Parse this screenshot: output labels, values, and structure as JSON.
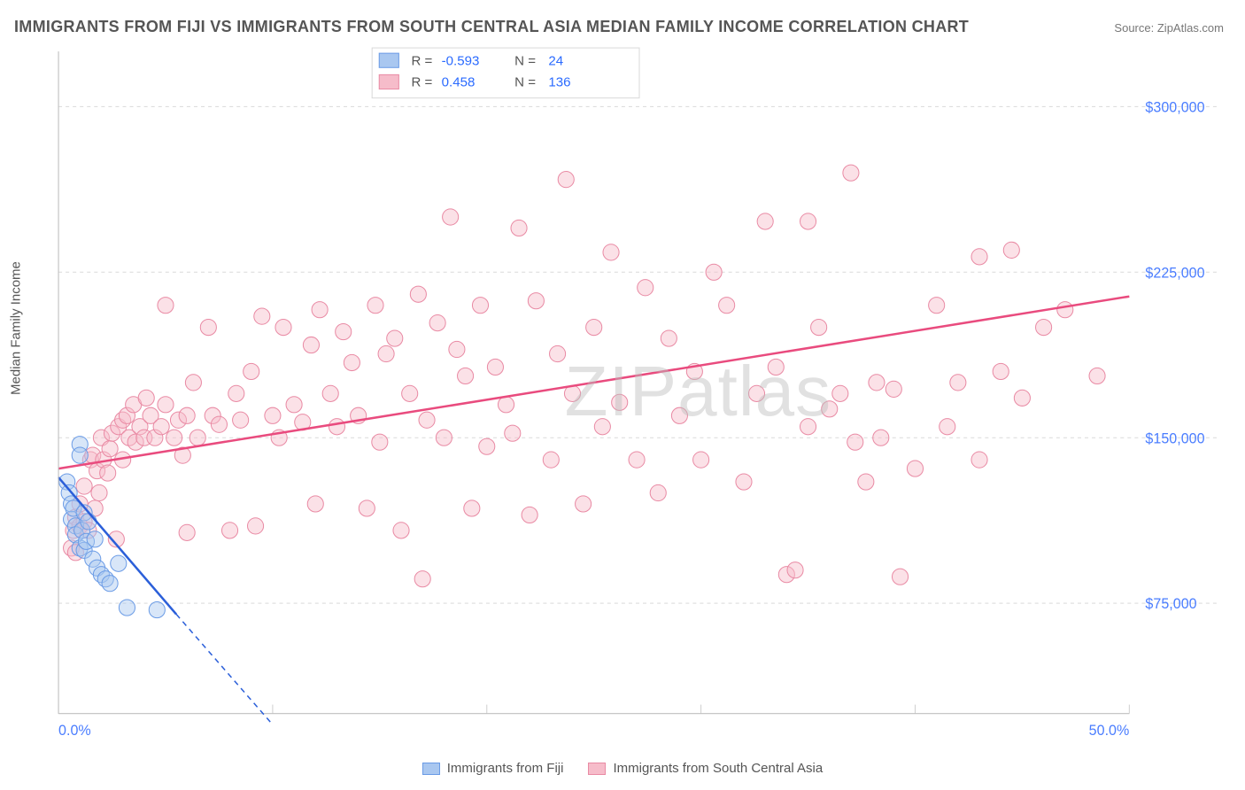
{
  "title": "IMMIGRANTS FROM FIJI VS IMMIGRANTS FROM SOUTH CENTRAL ASIA MEDIAN FAMILY INCOME CORRELATION CHART",
  "source_label": "Source:",
  "source_site": "ZipAtlas.com",
  "watermark": "ZIPatlas",
  "y_axis_title": "Median Family Income",
  "chart": {
    "type": "scatter-with-regression",
    "background_color": "#ffffff",
    "grid_color": "#d9d9d9",
    "axis_color": "#cfcfcf",
    "xlim": [
      0,
      50
    ],
    "ylim": [
      25000,
      325000
    ],
    "x_ticks": [
      0,
      10,
      20,
      30,
      40,
      50
    ],
    "x_tick_labels": [
      "0.0%",
      "",
      "",
      "",
      "",
      "50.0%"
    ],
    "y_ticks": [
      75000,
      150000,
      225000,
      300000
    ],
    "y_tick_labels": [
      "$75,000",
      "$150,000",
      "$225,000",
      "$300,000"
    ],
    "tick_label_color": "#4a7dff",
    "tick_label_fontsize": 16,
    "marker_radius": 9,
    "marker_opacity": 0.45,
    "series": [
      {
        "id": "fiji",
        "label": "Immigrants from Fiji",
        "color_fill": "#a9c7f0",
        "color_stroke": "#6a9be6",
        "line_color": "#2b5fd9",
        "line_width": 2.5,
        "R": -0.593,
        "N": 24,
        "regression": {
          "x1": 0,
          "y1": 132000,
          "x2": 5.5,
          "y2": 70000,
          "dash_after_x": 5.5,
          "x3": 10,
          "y3": 20000
        },
        "points": [
          [
            0.4,
            130000
          ],
          [
            0.5,
            125000
          ],
          [
            0.6,
            120000
          ],
          [
            0.6,
            113000
          ],
          [
            0.7,
            118000
          ],
          [
            0.8,
            110000
          ],
          [
            0.8,
            106000
          ],
          [
            1.0,
            147000
          ],
          [
            1.0,
            142000
          ],
          [
            1.0,
            100000
          ],
          [
            1.1,
            108000
          ],
          [
            1.2,
            116000
          ],
          [
            1.2,
            99000
          ],
          [
            1.3,
            103000
          ],
          [
            1.4,
            112000
          ],
          [
            1.6,
            95000
          ],
          [
            1.7,
            104000
          ],
          [
            1.8,
            91000
          ],
          [
            2.0,
            88000
          ],
          [
            2.2,
            86000
          ],
          [
            2.4,
            84000
          ],
          [
            2.8,
            93000
          ],
          [
            3.2,
            73000
          ],
          [
            4.6,
            72000
          ]
        ]
      },
      {
        "id": "sca",
        "label": "Immigrants from South Central Asia",
        "color_fill": "#f6bcca",
        "color_stroke": "#e98aa4",
        "line_color": "#e94b7e",
        "line_width": 2.5,
        "R": 0.458,
        "N": 136,
        "regression": {
          "x1": 0,
          "y1": 136000,
          "x2": 50,
          "y2": 214000
        },
        "points": [
          [
            0.6,
            100000
          ],
          [
            0.7,
            108000
          ],
          [
            0.8,
            98000
          ],
          [
            0.8,
            114000
          ],
          [
            1.0,
            110000
          ],
          [
            1.0,
            120000
          ],
          [
            1.2,
            112000
          ],
          [
            1.2,
            128000
          ],
          [
            1.4,
            108000
          ],
          [
            1.5,
            140000
          ],
          [
            1.6,
            142000
          ],
          [
            1.7,
            118000
          ],
          [
            1.8,
            135000
          ],
          [
            1.9,
            125000
          ],
          [
            2.0,
            150000
          ],
          [
            2.1,
            140000
          ],
          [
            2.3,
            134000
          ],
          [
            2.4,
            145000
          ],
          [
            2.5,
            152000
          ],
          [
            2.7,
            104000
          ],
          [
            2.8,
            155000
          ],
          [
            3.0,
            158000
          ],
          [
            3.0,
            140000
          ],
          [
            3.2,
            160000
          ],
          [
            3.3,
            150000
          ],
          [
            3.5,
            165000
          ],
          [
            3.6,
            148000
          ],
          [
            3.8,
            155000
          ],
          [
            4.0,
            150000
          ],
          [
            4.1,
            168000
          ],
          [
            4.3,
            160000
          ],
          [
            4.5,
            150000
          ],
          [
            4.8,
            155000
          ],
          [
            5.0,
            165000
          ],
          [
            5.0,
            210000
          ],
          [
            5.4,
            150000
          ],
          [
            5.6,
            158000
          ],
          [
            5.8,
            142000
          ],
          [
            6.0,
            160000
          ],
          [
            6.0,
            107000
          ],
          [
            6.3,
            175000
          ],
          [
            6.5,
            150000
          ],
          [
            7.0,
            200000
          ],
          [
            7.2,
            160000
          ],
          [
            7.5,
            156000
          ],
          [
            8.0,
            108000
          ],
          [
            8.3,
            170000
          ],
          [
            8.5,
            158000
          ],
          [
            9.0,
            180000
          ],
          [
            9.2,
            110000
          ],
          [
            9.5,
            205000
          ],
          [
            10.0,
            160000
          ],
          [
            10.3,
            150000
          ],
          [
            10.5,
            200000
          ],
          [
            11.0,
            165000
          ],
          [
            11.4,
            157000
          ],
          [
            11.8,
            192000
          ],
          [
            12.0,
            120000
          ],
          [
            12.2,
            208000
          ],
          [
            12.7,
            170000
          ],
          [
            13.0,
            155000
          ],
          [
            13.3,
            198000
          ],
          [
            13.7,
            184000
          ],
          [
            14.0,
            160000
          ],
          [
            14.4,
            118000
          ],
          [
            14.8,
            210000
          ],
          [
            15.0,
            148000
          ],
          [
            15.3,
            188000
          ],
          [
            15.7,
            195000
          ],
          [
            16.0,
            108000
          ],
          [
            16.4,
            170000
          ],
          [
            16.8,
            215000
          ],
          [
            17.0,
            86000
          ],
          [
            17.2,
            158000
          ],
          [
            17.7,
            202000
          ],
          [
            18.0,
            150000
          ],
          [
            18.3,
            250000
          ],
          [
            18.6,
            190000
          ],
          [
            19.0,
            178000
          ],
          [
            19.3,
            118000
          ],
          [
            19.7,
            210000
          ],
          [
            20.0,
            146000
          ],
          [
            20.4,
            182000
          ],
          [
            20.9,
            165000
          ],
          [
            21.2,
            152000
          ],
          [
            21.5,
            245000
          ],
          [
            22.0,
            115000
          ],
          [
            22.3,
            212000
          ],
          [
            23.0,
            140000
          ],
          [
            23.3,
            188000
          ],
          [
            23.7,
            267000
          ],
          [
            24.0,
            170000
          ],
          [
            24.5,
            120000
          ],
          [
            25.0,
            200000
          ],
          [
            25.4,
            155000
          ],
          [
            25.8,
            234000
          ],
          [
            26.2,
            166000
          ],
          [
            27.0,
            140000
          ],
          [
            27.4,
            218000
          ],
          [
            28.0,
            125000
          ],
          [
            28.5,
            195000
          ],
          [
            29.0,
            160000
          ],
          [
            29.7,
            180000
          ],
          [
            30.0,
            140000
          ],
          [
            30.6,
            225000
          ],
          [
            31.2,
            210000
          ],
          [
            32.0,
            130000
          ],
          [
            32.6,
            170000
          ],
          [
            33.0,
            248000
          ],
          [
            33.5,
            182000
          ],
          [
            34.0,
            88000
          ],
          [
            34.4,
            90000
          ],
          [
            35.0,
            155000
          ],
          [
            35.0,
            248000
          ],
          [
            35.5,
            200000
          ],
          [
            36.0,
            163000
          ],
          [
            36.5,
            170000
          ],
          [
            37.0,
            270000
          ],
          [
            37.2,
            148000
          ],
          [
            37.7,
            130000
          ],
          [
            38.2,
            175000
          ],
          [
            38.4,
            150000
          ],
          [
            39.0,
            172000
          ],
          [
            39.3,
            87000
          ],
          [
            40.0,
            136000
          ],
          [
            41.0,
            210000
          ],
          [
            41.5,
            155000
          ],
          [
            42.0,
            175000
          ],
          [
            43.0,
            232000
          ],
          [
            43.0,
            140000
          ],
          [
            44.0,
            180000
          ],
          [
            44.5,
            235000
          ],
          [
            45.0,
            168000
          ],
          [
            46.0,
            200000
          ],
          [
            47.0,
            208000
          ],
          [
            48.5,
            178000
          ]
        ]
      }
    ]
  },
  "top_legend": {
    "bg": "#ffffff",
    "border": "#d9d9d9",
    "rows": [
      {
        "swatch_fill": "#a9c7f0",
        "swatch_stroke": "#6a9be6",
        "R_label": "R =",
        "R_value": "-0.593",
        "N_label": "N =",
        "N_value": "24"
      },
      {
        "swatch_fill": "#f6bcca",
        "swatch_stroke": "#e98aa4",
        "R_label": "R =",
        "R_value": "0.458",
        "N_label": "N =",
        "N_value": "136"
      }
    ]
  },
  "bottom_legend": [
    {
      "fill": "#a9c7f0",
      "stroke": "#6a9be6",
      "label": "Immigrants from Fiji"
    },
    {
      "fill": "#f6bcca",
      "stroke": "#e98aa4",
      "label": "Immigrants from South Central Asia"
    }
  ]
}
